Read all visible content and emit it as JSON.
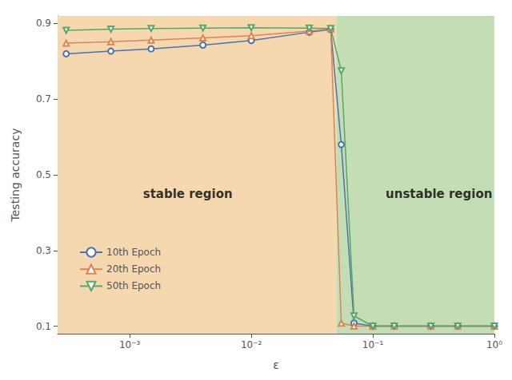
{
  "chart_data": {
    "type": "line",
    "xlabel": "ε",
    "ylabel": "Testing accuracy",
    "log": "x",
    "x": [
      0.0003,
      0.0007,
      0.0015,
      0.004,
      0.01,
      0.03,
      0.045,
      0.055,
      0.07,
      0.1,
      0.15,
      0.3,
      0.5,
      1.0
    ],
    "series": [
      {
        "name": "10th Epoch",
        "color": "#4C72B0",
        "marker": "circle",
        "values": [
          0.82,
          0.827,
          0.833,
          0.843,
          0.855,
          0.877,
          0.884,
          0.58,
          0.108,
          0.1,
          0.1,
          0.1,
          0.1,
          0.1
        ]
      },
      {
        "name": "20th Epoch",
        "color": "#DD8452",
        "marker": "triangle-up",
        "values": [
          0.848,
          0.852,
          0.856,
          0.862,
          0.868,
          0.88,
          0.886,
          0.108,
          0.1,
          0.1,
          0.1,
          0.1,
          0.1,
          0.1
        ]
      },
      {
        "name": "50th Epoch",
        "color": "#55A868",
        "marker": "triangle-down",
        "values": [
          0.882,
          0.885,
          0.887,
          0.888,
          0.889,
          0.888,
          0.887,
          0.775,
          0.127,
          0.1,
          0.1,
          0.1,
          0.1,
          0.1
        ]
      }
    ],
    "xlim": [
      0.000255,
      1.0
    ],
    "xticks": [
      {
        "value": 0.001,
        "label": "10⁻³"
      },
      {
        "value": 0.01,
        "label": "10⁻²"
      },
      {
        "value": 0.1,
        "label": "10⁻¹"
      },
      {
        "value": 1,
        "label": "10⁰"
      }
    ],
    "ylim": [
      0.08,
      0.92
    ],
    "yticks": [
      0.1,
      0.3,
      0.5,
      0.7,
      0.9
    ],
    "grid": false,
    "legend": "lower left",
    "regions": [
      {
        "from": 0.000255,
        "to": 0.05,
        "color": "#F5D8B0"
      },
      {
        "from": 0.05,
        "to": 1.0,
        "color": "#C5DDB5"
      }
    ],
    "annotations": [
      {
        "text": "stable region",
        "x": 0.003,
        "y": 0.45
      },
      {
        "text": "unstable region",
        "x": 0.35,
        "y": 0.45
      }
    ]
  }
}
